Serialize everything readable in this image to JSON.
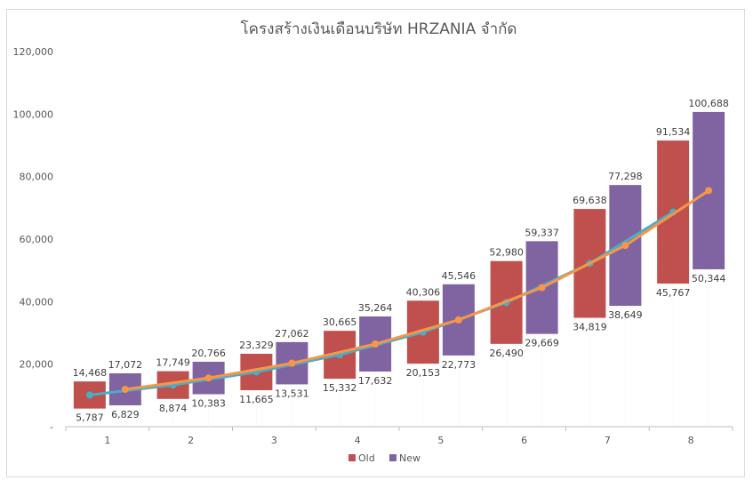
{
  "chart_data": {
    "type": "bar",
    "title": "โครงสร้างเงินเดือนบริษัท HRZANIA จำกัด",
    "categories": [
      "1",
      "2",
      "3",
      "4",
      "5",
      "6",
      "7",
      "8"
    ],
    "ylim": [
      0,
      120000
    ],
    "yticks": [
      0,
      20000,
      40000,
      60000,
      80000,
      100000,
      120000
    ],
    "ytick_labels": [
      "-",
      "20,000",
      "40,000",
      "60,000",
      "80,000",
      "100,000",
      "120,000"
    ],
    "grid": false,
    "legend_position": "bottom",
    "series": [
      {
        "name": "Old",
        "color": "#c0504d",
        "min": [
          5787,
          8874,
          11665,
          15332,
          20153,
          26490,
          34819,
          45767
        ],
        "max": [
          14468,
          17749,
          23329,
          30665,
          40306,
          52980,
          69638,
          91534
        ],
        "min_labels": [
          "5,787",
          "8,874",
          "11,665",
          "15,332",
          "20,153",
          "26,490",
          "34,819",
          "45,767"
        ],
        "max_labels": [
          "14,468",
          "17,749",
          "23,329",
          "30,665",
          "40,306",
          "52,980",
          "69,638",
          "91,534"
        ],
        "mid_line_color": "#4bacc6",
        "mid": [
          10128,
          13311,
          17497,
          22998,
          30229,
          39735,
          52229,
          68650
        ]
      },
      {
        "name": "New",
        "color": "#8064a2",
        "min": [
          6829,
          10383,
          13531,
          17632,
          22773,
          29669,
          38649,
          50344
        ],
        "max": [
          17072,
          20766,
          27062,
          35264,
          45546,
          59337,
          77298,
          100688
        ],
        "min_labels": [
          "6,829",
          "10,383",
          "13,531",
          "17,632",
          "22,773",
          "29,669",
          "38,649",
          "50,344"
        ],
        "max_labels": [
          "17,072",
          "20,766",
          "27,062",
          "35,264",
          "45,546",
          "59,337",
          "77,298",
          "100,688"
        ],
        "mid_line_color": "#f79646",
        "mid": [
          11951,
          15575,
          20297,
          26448,
          34160,
          44503,
          57974,
          75516
        ]
      }
    ]
  }
}
